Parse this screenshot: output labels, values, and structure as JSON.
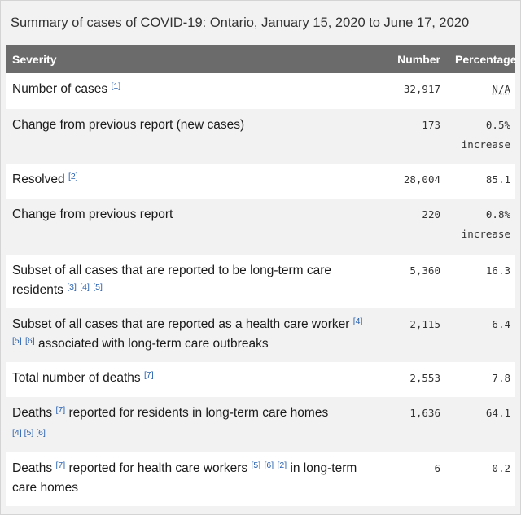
{
  "caption": "Summary of cases of COVID-19: Ontario, January 15, 2020 to June 17, 2020",
  "headers": {
    "severity": "Severity",
    "number": "Number",
    "percentage": "Percentage"
  },
  "rows": [
    {
      "label_parts": [
        "Number of cases"
      ],
      "refs": [
        "[1]"
      ],
      "number": "32,917",
      "percentage": "N/A"
    },
    {
      "label_parts": [
        "Change from previous report (new cases)"
      ],
      "number": "173",
      "percentage": "0.5%",
      "percentage_note": "increase"
    },
    {
      "label_parts": [
        "Resolved"
      ],
      "refs": [
        "[2]"
      ],
      "number": "28,004",
      "percentage": "85.1"
    },
    {
      "label_parts": [
        "Change from previous report"
      ],
      "number": "220",
      "percentage": "0.8%",
      "percentage_note": "increase"
    },
    {
      "label_parts": [
        "Subset of all cases that are reported to be long-term care residents"
      ],
      "refs": [
        "[3]",
        "[4]",
        "[5]"
      ],
      "number": "5,360",
      "percentage": "16.3"
    },
    {
      "label_parts": [
        "Subset of all cases that are reported as a health care worker",
        "associated with long-term care outbreaks"
      ],
      "refs": [
        "[4]",
        "[5]",
        "[6]"
      ],
      "number": "2,115",
      "percentage": "6.4"
    },
    {
      "label_parts": [
        "Total number of deaths"
      ],
      "refs": [
        "[7]"
      ],
      "number": "2,553",
      "percentage": "7.8"
    },
    {
      "label_parts": [
        "Deaths",
        "reported for residents in long-term care homes"
      ],
      "refs": [
        "[7]"
      ],
      "refs_after": [
        "[4]",
        "[5]",
        "[6]"
      ],
      "number": "1,636",
      "percentage": "64.1"
    },
    {
      "label_parts": [
        "Deaths",
        "reported for health care workers",
        "in long-term care homes"
      ],
      "refs": [
        "[7]"
      ],
      "refs_mid": [
        "[5]",
        "[6]",
        "[2]"
      ],
      "number": "6",
      "percentage": "0.2"
    }
  ]
}
